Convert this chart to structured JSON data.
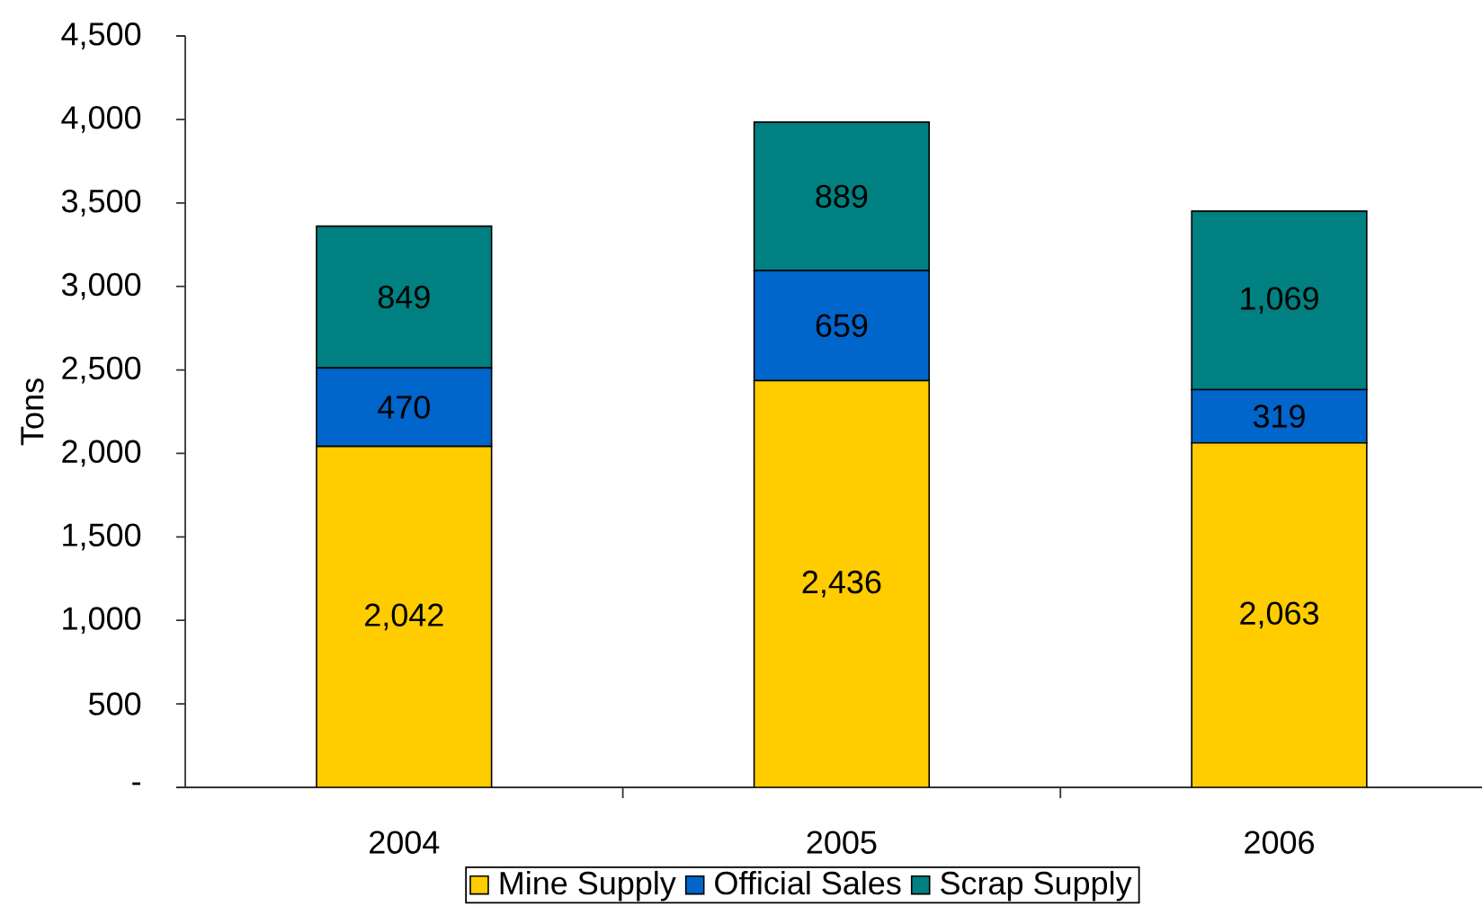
{
  "chart_data": {
    "type": "bar",
    "stacked": true,
    "ylabel": "Tons",
    "categories": [
      "2004",
      "2005",
      "2006"
    ],
    "series": [
      {
        "name": "Mine Supply",
        "color": "#ffcc00",
        "values": [
          2042,
          2436,
          2063
        ],
        "value_labels": [
          "2,042",
          "2,436",
          "2,063"
        ]
      },
      {
        "name": "Official Sales",
        "color": "#0066cc",
        "values": [
          470,
          659,
          319
        ],
        "value_labels": [
          "470",
          "659",
          "319"
        ]
      },
      {
        "name": "Scrap Supply",
        "color": "#008080",
        "values": [
          849,
          889,
          1069
        ],
        "value_labels": [
          "849",
          "889",
          "1,069"
        ]
      }
    ],
    "ylim": [
      0,
      4500
    ],
    "yticks": [
      {
        "value": 0,
        "label": "-"
      },
      {
        "value": 500,
        "label": "500"
      },
      {
        "value": 1000,
        "label": "1,000"
      },
      {
        "value": 1500,
        "label": "1,500"
      },
      {
        "value": 2000,
        "label": "2,000"
      },
      {
        "value": 2500,
        "label": "2,500"
      },
      {
        "value": 3000,
        "label": "3,000"
      },
      {
        "value": 3500,
        "label": "3,500"
      },
      {
        "value": 4000,
        "label": "4,000"
      },
      {
        "value": 4500,
        "label": "4,500"
      }
    ],
    "legend": "bottom"
  }
}
